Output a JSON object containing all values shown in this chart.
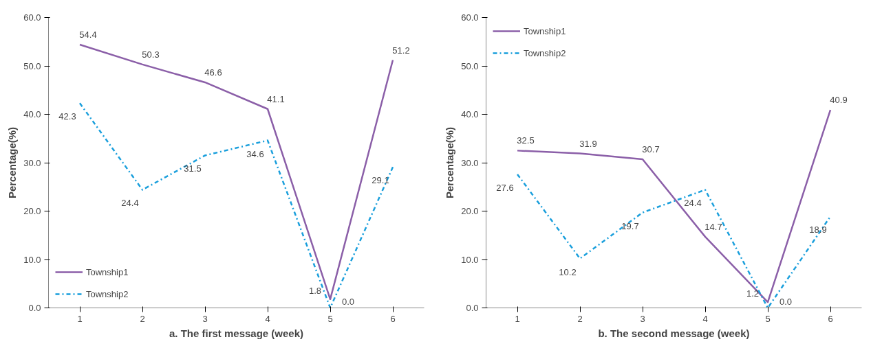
{
  "chart_data": [
    {
      "type": "line",
      "categories": [
        "1",
        "2",
        "3",
        "4",
        "5",
        "6"
      ],
      "xlabel": "a. The first message (week)",
      "ylabel": "Percentage(%)",
      "ylim": [
        0,
        60
      ],
      "yticks": [
        {
          "value": 0,
          "label": "0.0"
        },
        {
          "value": 10,
          "label": "10.0"
        },
        {
          "value": 20,
          "label": "20.0"
        },
        {
          "value": 30,
          "label": "30.0"
        },
        {
          "value": 40,
          "label": "40.0"
        },
        {
          "value": 50,
          "label": "50.0"
        },
        {
          "value": 60,
          "label": "60.0"
        }
      ],
      "grid": false,
      "legend": "bottom left",
      "marker": "none",
      "series": [
        {
          "name": "Township1",
          "color": "#8b5fa8",
          "line_style": "solid",
          "values": [
            54.4,
            50.3,
            46.6,
            41.1,
            1.8,
            51.2
          ],
          "value_labels": [
            "54.4",
            "50.3",
            "46.6",
            "41.1",
            "1.8",
            "51.2"
          ]
        },
        {
          "name": "Township2",
          "color": "#1a9fdc",
          "line_style": "dashdot",
          "values": [
            42.3,
            24.4,
            31.5,
            34.6,
            0.0,
            29.1
          ],
          "value_labels": [
            "42.3",
            "24.4",
            "31.5",
            "34.6",
            "0.0",
            "29.1"
          ]
        }
      ]
    },
    {
      "type": "line",
      "categories": [
        "1",
        "2",
        "3",
        "4",
        "5",
        "6"
      ],
      "xlabel": "b. The second message (week)",
      "ylabel": "Percentage(%)",
      "ylim": [
        0,
        60
      ],
      "yticks": [
        {
          "value": 0,
          "label": "0.0"
        },
        {
          "value": 10,
          "label": "10.0"
        },
        {
          "value": 20,
          "label": "20.0"
        },
        {
          "value": 30,
          "label": "30.0"
        },
        {
          "value": 40,
          "label": "40.0"
        },
        {
          "value": 50,
          "label": "50.0"
        },
        {
          "value": 60,
          "label": "60.0"
        }
      ],
      "grid": false,
      "legend": "top left",
      "marker": "none",
      "series": [
        {
          "name": "Township1",
          "color": "#8b5fa8",
          "line_style": "solid",
          "values": [
            32.5,
            31.9,
            30.7,
            14.7,
            1.2,
            40.9
          ],
          "value_labels": [
            "32.5",
            "31.9",
            "30.7",
            "14.7",
            "1.2",
            "40.9"
          ]
        },
        {
          "name": "Township2",
          "color": "#1a9fdc",
          "line_style": "dashdot",
          "values": [
            27.6,
            10.2,
            19.7,
            24.4,
            0.0,
            18.9
          ],
          "value_labels": [
            "27.6",
            "10.2",
            "19.7",
            "24.4",
            "0.0",
            "18.9"
          ]
        }
      ]
    }
  ]
}
